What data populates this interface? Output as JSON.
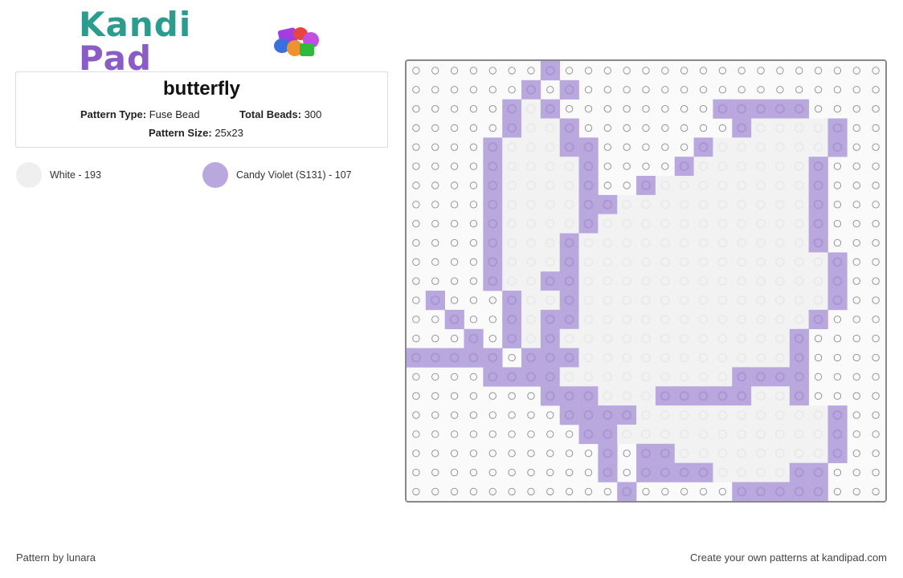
{
  "logo": {
    "text_part1": "Kandi",
    "text_part2": " Pad"
  },
  "pattern": {
    "title": "butterfly",
    "type_label": "Pattern Type:",
    "type_value": "Fuse Bead",
    "beads_label": "Total Beads:",
    "beads_value": "300",
    "size_label": "Pattern Size:",
    "size_value": "25x23"
  },
  "legend": [
    {
      "label": "White - 193",
      "color": "#efefef"
    },
    {
      "label": "Candy Violet (S131) - 107",
      "color": "#b9a8dd"
    }
  ],
  "colors": {
    "white": "#f2f2f2",
    "violet": "#b9a8dd",
    "peg": "#8c8c8c",
    "grid_bg": "#fafafa"
  },
  "grid": {
    "cols": 25,
    "rows": 23,
    "legend_key": {
      "0": "empty",
      "1": "White",
      "2": "Candy Violet (S131)"
    },
    "cells": [
      "0000000200000000000000000",
      "0000002020000000000000000",
      "0000021200000000222220000",
      "0000021120000000021111200",
      "0000211122000002111111200",
      "0000211112000021111112000",
      "0000211112002111111112000",
      "0000211112211111111112000",
      "0000211112111111111112000",
      "0000211121111111111112000",
      "0000211121111111111111200",
      "0000211221111111111111200",
      "0200021121111111111111200",
      "0020021221111111111112000",
      "0002021211111111111120000",
      "2222202221111111111120000",
      "0000222211111111122220000",
      "0000000222111222221120000",
      "0000000022221111111111200",
      "0000000002211111111111200",
      "0000000000202211111111200",
      "0000000000202222111122000",
      "0000000000020000022222000"
    ]
  },
  "footer": {
    "left": "Pattern by lunara",
    "right": "Create your own patterns at kandipad.com"
  }
}
